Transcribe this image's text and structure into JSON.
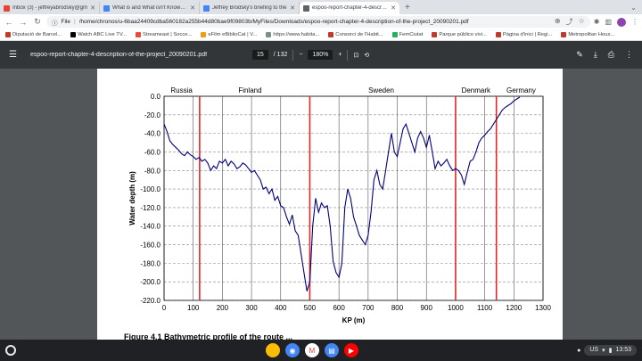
{
  "tabs": [
    {
      "title": "Inbox (3) - jeffreyabrodsky@gm",
      "favicon": "gmail-icon",
      "color": "#ea4335",
      "active": false
    },
    {
      "title": "What is and What isn't Known A",
      "favicon": "docs-icon",
      "color": "#4285f4",
      "active": false
    },
    {
      "title": "Jeffrey Brodsky's briefing to the",
      "favicon": "docs-icon",
      "color": "#4285f4",
      "active": false
    },
    {
      "title": "espoo-report-chapter-4-descripti",
      "favicon": "globe-icon",
      "color": "#5f6368",
      "active": true
    }
  ],
  "omnibox": {
    "scheme": "File",
    "url": "/home/chronos/u-6baa24409cdba560182a255b44d80bae9f09803b/MyFiles/Downloads/espoo-report-chapter-4-description-of-the-project_20090201.pdf"
  },
  "bookmarks": [
    {
      "label": "Diputació de Barcel...",
      "color": "#c0392b"
    },
    {
      "label": "Watch ABC Live TV...",
      "color": "#000000"
    },
    {
      "label": "Streameast | Socce...",
      "color": "#e74c3c"
    },
    {
      "label": "eFilm eBiblioCat | V...",
      "color": "#f39c12"
    },
    {
      "label": "https://www.habita...",
      "color": "#7f8c8d"
    },
    {
      "label": "Consorci de l'Habit...",
      "color": "#c0392b"
    },
    {
      "label": "FemCiutat",
      "color": "#27ae60"
    },
    {
      "label": "Parque público vivi...",
      "color": "#c0392b"
    },
    {
      "label": "Pàgina d'inici | Regi...",
      "color": "#c0392b"
    },
    {
      "label": "Metropolitan Hous...",
      "color": "#c0392b"
    }
  ],
  "pdf": {
    "title": "espoo-report-chapter-4-description-of-the-project_20090201.pdf",
    "page_current": "15",
    "page_total": "/ 132",
    "zoom": "180%",
    "caption": "Figure 4.1 Bathymetric profile of the route ..."
  },
  "chart_data": {
    "type": "line",
    "xlabel": "KP (m)",
    "ylabel": "Water depth (m)",
    "xlim": [
      0,
      1300
    ],
    "ylim": [
      -220,
      0
    ],
    "xticks": [
      0,
      100,
      200,
      300,
      400,
      500,
      600,
      700,
      800,
      900,
      1000,
      1100,
      1200,
      1300
    ],
    "yticks": [
      0.0,
      -20.0,
      -40.0,
      -60.0,
      -80.0,
      -100.0,
      -120.0,
      -140.0,
      -160.0,
      -180.0,
      -200.0,
      -220.0
    ],
    "grid": true,
    "color": "#00007f",
    "boundaries": [
      122,
      500,
      1000,
      1140
    ],
    "boundary_color": "#e32626",
    "regions": [
      {
        "name": "Russia",
        "x": 60
      },
      {
        "name": "Finland",
        "x": 295
      },
      {
        "name": "Sweden",
        "x": 745
      },
      {
        "name": "Denmark",
        "x": 1070
      },
      {
        "name": "Germany",
        "x": 1225
      }
    ],
    "series": [
      {
        "x": [
          0,
          10,
          20,
          30,
          40,
          50,
          60,
          70,
          80,
          90,
          100,
          110,
          120,
          130,
          140,
          150,
          160,
          170,
          180,
          190,
          200,
          210,
          220,
          230,
          240,
          250,
          260,
          270,
          280,
          290,
          300,
          310,
          320,
          330,
          340,
          350,
          360,
          370,
          380,
          390,
          400,
          410,
          420,
          430,
          440,
          450,
          460,
          470,
          480,
          490,
          500,
          510,
          520,
          530,
          540,
          550,
          560,
          570,
          580,
          590,
          600,
          610,
          620,
          630,
          640,
          650,
          660,
          670,
          680,
          690,
          700,
          710,
          720,
          730,
          740,
          750,
          760,
          770,
          780,
          790,
          800,
          810,
          820,
          830,
          840,
          850,
          860,
          870,
          880,
          890,
          900,
          910,
          920,
          930,
          940,
          950,
          960,
          970,
          980,
          990,
          1000,
          1010,
          1020,
          1030,
          1040,
          1050,
          1060,
          1070,
          1080,
          1090,
          1100,
          1110,
          1120,
          1130,
          1140,
          1150,
          1160,
          1170,
          1180,
          1190,
          1200,
          1210,
          1220
        ],
        "y": [
          -30,
          -38,
          -48,
          -52,
          -55,
          -58,
          -62,
          -64,
          -60,
          -63,
          -65,
          -68,
          -66,
          -70,
          -68,
          -72,
          -80,
          -75,
          -78,
          -70,
          -72,
          -68,
          -75,
          -70,
          -73,
          -78,
          -76,
          -72,
          -74,
          -78,
          -82,
          -80,
          -85,
          -90,
          -100,
          -98,
          -105,
          -100,
          -112,
          -108,
          -118,
          -120,
          -130,
          -138,
          -128,
          -145,
          -150,
          -170,
          -190,
          -210,
          -200,
          -140,
          -110,
          -125,
          -115,
          -120,
          -118,
          -140,
          -178,
          -190,
          -195,
          -180,
          -120,
          -100,
          -110,
          -130,
          -140,
          -150,
          -155,
          -160,
          -150,
          -125,
          -90,
          -80,
          -95,
          -100,
          -80,
          -60,
          -40,
          -60,
          -65,
          -50,
          -35,
          -30,
          -40,
          -50,
          -60,
          -45,
          -38,
          -45,
          -55,
          -42,
          -60,
          -78,
          -70,
          -75,
          -72,
          -68,
          -75,
          -80,
          -78,
          -80,
          -85,
          -95,
          -82,
          -70,
          -68,
          -60,
          -50,
          -45,
          -42,
          -38,
          -35,
          -30,
          -25,
          -20,
          -15,
          -12,
          -10,
          -8,
          -5,
          -3,
          -1
        ]
      }
    ]
  },
  "taskbar": {
    "apps": [
      {
        "name": "files-icon",
        "color": "#fbbc04",
        "glyph": ""
      },
      {
        "name": "chrome-icon",
        "color": "#4285f4",
        "glyph": "◉"
      },
      {
        "name": "gmail-icon",
        "color": "#ffffff",
        "glyph": "M"
      },
      {
        "name": "docs-icon",
        "color": "#4285f4",
        "glyph": "▤"
      },
      {
        "name": "youtube-icon",
        "color": "#ff0000",
        "glyph": "▶"
      }
    ],
    "locale": "US",
    "time": "13:53"
  }
}
